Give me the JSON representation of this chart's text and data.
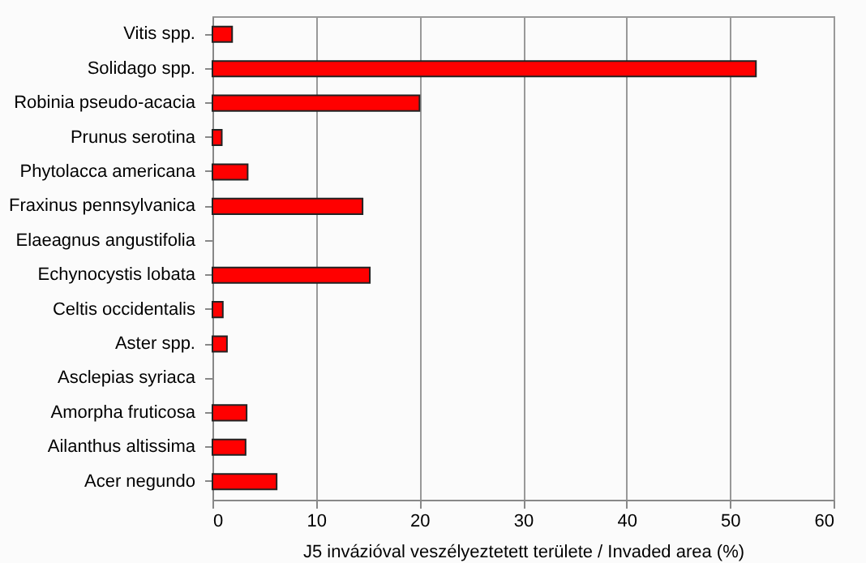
{
  "chart_data": {
    "type": "bar",
    "orientation": "horizontal",
    "xlabel": "J5 invázióval veszélyeztetett területe / Invaded area  (%)",
    "categories": [
      "Vitis spp.",
      "Solidago spp.",
      "Robinia pseudo-acacia",
      "Prunus serotina",
      "Phytolacca americana",
      "Fraxinus pennsylvanica",
      "Elaeagnus angustifolia",
      "Echynocystis lobata",
      "Celtis occidentalis",
      "Aster spp.",
      "Asclepias syriaca",
      "Amorpha fruticosa",
      "Ailanthus altissima",
      "Acer negundo"
    ],
    "values": [
      1.9,
      52.5,
      20,
      0.9,
      3.4,
      14.5,
      0,
      15.2,
      1.0,
      1.4,
      0,
      3.3,
      3.2,
      6.2
    ],
    "color": "#ff0000",
    "xlim": [
      0,
      60
    ],
    "xticks": [
      0,
      10,
      20,
      30,
      40,
      50,
      60
    ],
    "grid": "x"
  }
}
